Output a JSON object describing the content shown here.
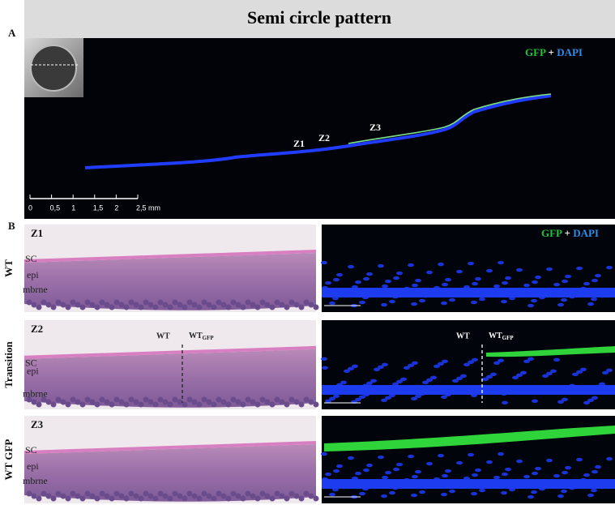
{
  "header": {
    "title": "Semi circle pattern"
  },
  "panel_a": {
    "label": "A",
    "stain": {
      "gfp": "GFP",
      "plus": "+",
      "dapi": "DAPI"
    },
    "zones": [
      "Z1",
      "Z2",
      "Z3"
    ],
    "scale": [
      "0",
      "0,5",
      "1",
      "1,5",
      "2",
      "2,5 mm"
    ]
  },
  "panel_b": {
    "label": "B",
    "stain": {
      "gfp": "GFP",
      "plus": "+",
      "dapi": "DAPI"
    },
    "rows": [
      {
        "condition": "WT",
        "zone": "Z1",
        "layers": [
          "SC",
          "epi",
          "mbrne"
        ]
      },
      {
        "condition": "Transition",
        "zone": "Z2",
        "layers": [
          "SC",
          "epi",
          "mbrne"
        ],
        "boundary": {
          "left": "WT",
          "right": {
            "main": "WT",
            "sub": "GFP"
          }
        }
      },
      {
        "condition": "WT GFP",
        "zone": "Z3",
        "layers": [
          "SC",
          "epi",
          "mbrne"
        ]
      }
    ]
  }
}
